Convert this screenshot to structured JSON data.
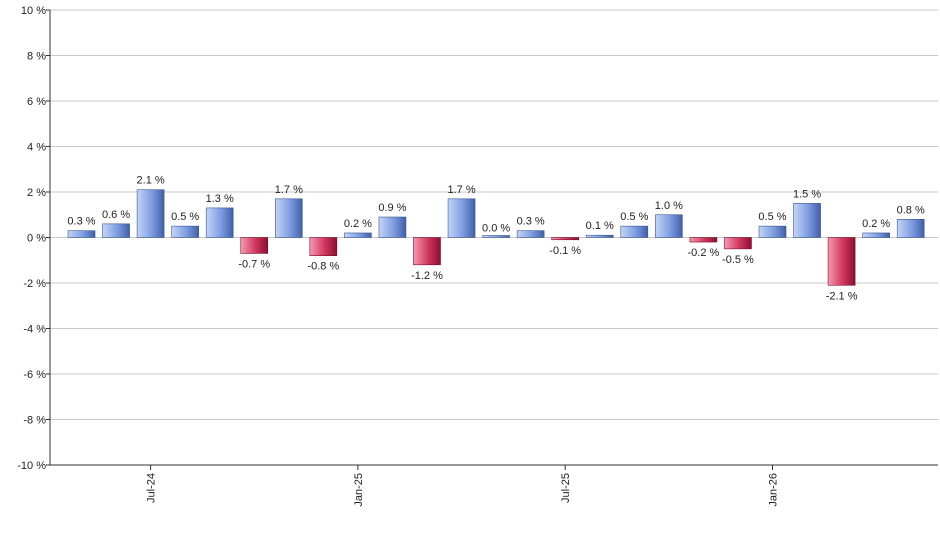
{
  "chart_data": {
    "type": "bar",
    "title": "",
    "xlabel": "",
    "ylabel": "",
    "ylim": [
      -10,
      10
    ],
    "y_ticks": [
      10,
      8,
      6,
      4,
      2,
      0,
      -2,
      -4,
      -6,
      -8,
      -10
    ],
    "y_tick_labels": [
      "10 %",
      "8 %",
      "6 %",
      "4 %",
      "2 %",
      "0 %",
      "-2 %",
      "-4 %",
      "-6 %",
      "-8 %",
      "-10 %"
    ],
    "grid": true,
    "legend": "none",
    "colors": {
      "positive_light": "#c3d5f7",
      "positive_dark": "#3f5fa8",
      "negative_light": "#f59ab0",
      "negative_dark": "#8c0e30",
      "grid": "#c8c8c8",
      "axis": "#333333"
    },
    "values": [
      0.3,
      0.6,
      2.1,
      0.5,
      1.3,
      -0.7,
      1.7,
      -0.8,
      0.2,
      0.9,
      -1.2,
      1.7,
      0.0,
      0.3,
      -0.1,
      0.1,
      0.5,
      1.0,
      -0.2,
      -0.5,
      0.5,
      1.5,
      -2.1,
      0.2,
      0.8
    ],
    "data_labels": [
      "0.3 %",
      "0.6 %",
      "2.1 %",
      "0.5 %",
      "1.3 %",
      "-0.7 %",
      "1.7 %",
      "-0.8 %",
      "0.2 %",
      "0.9 %",
      "-1.2 %",
      "1.7 %",
      "0.0 %",
      "0.3 %",
      "-0.1 %",
      "0.1 %",
      "0.5 %",
      "1.0 %",
      "-0.2 %",
      "-0.5 %",
      "0.5 %",
      "1.5 %",
      "-2.1 %",
      "0.2 %",
      "0.8 %"
    ],
    "x_ticks": [
      {
        "index": 2,
        "label": "Jul-24"
      },
      {
        "index": 8,
        "label": "Jan-25"
      },
      {
        "index": 14,
        "label": "Jul-25"
      },
      {
        "index": 20,
        "label": "Jan-26"
      }
    ]
  }
}
